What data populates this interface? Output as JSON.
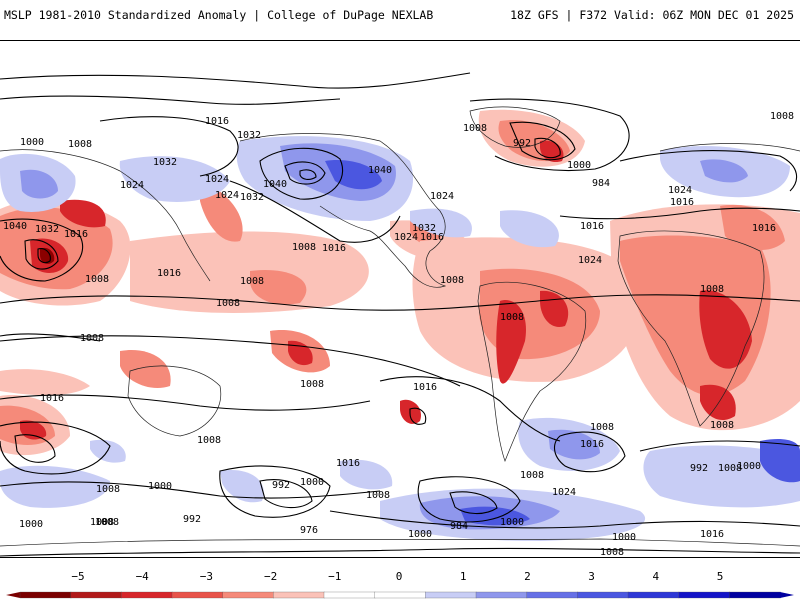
{
  "header": {
    "title_left": "MSLP 1981-2010 Standardized Anomaly | College of DuPage NEXLAB",
    "title_right": "18Z GFS | F372 Valid: 06Z MON DEC 01 2025"
  },
  "map": {
    "isobar_labels": [
      "1016",
      "1000",
      "1008",
      "1032",
      "1008",
      "992",
      "1000",
      "984",
      "1024",
      "1032",
      "1024",
      "1024",
      "1040",
      "1032",
      "1040",
      "1024",
      "1032",
      "1024",
      "1016",
      "1016",
      "1040",
      "1032",
      "1016",
      "1008",
      "1016",
      "1024",
      "1016",
      "1016",
      "1024",
      "1016",
      "1008",
      "1008",
      "1008",
      "1008",
      "1008",
      "1008",
      "1008",
      "1008",
      "1008",
      "1008",
      "1016",
      "1008",
      "1016",
      "1008",
      "1016",
      "1008",
      "1016",
      "1008",
      "1000",
      "1008",
      "1000",
      "1008",
      "1000",
      "992",
      "1000",
      "992",
      "976",
      "1008",
      "984",
      "992",
      "1000",
      "1024",
      "1016",
      "1000",
      "1016",
      "1008",
      "1016",
      "1000",
      "1008",
      "1000",
      "1016",
      "1008"
    ],
    "colors": {
      "neg_strong": "#8b0000",
      "neg_mid": "#d7262b",
      "neg_light": "#f58a7a",
      "neg_faint": "#fbc2b8",
      "pos_faint": "#c8cdf5",
      "pos_light": "#8f97ec",
      "pos_mid": "#4b57e0",
      "pos_strong": "#1414c8"
    }
  },
  "colorbar": {
    "ticks": [
      "−5",
      "−4",
      "−3",
      "−2",
      "−1",
      "0",
      "1",
      "2",
      "3",
      "4",
      "5"
    ],
    "colors": [
      "#7a0000",
      "#b11a1a",
      "#d7262b",
      "#e8534a",
      "#f58a7a",
      "#fbc2b8",
      "#ffffff",
      "#ffffff",
      "#c8cdf5",
      "#8f97ec",
      "#6670e6",
      "#4b57e0",
      "#2e38d6",
      "#1414c8",
      "#0000a0"
    ]
  }
}
